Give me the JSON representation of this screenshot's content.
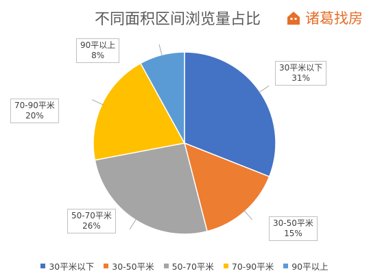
{
  "chart_data": {
    "type": "pie",
    "title": "不同面积区间浏览量占比",
    "categories": [
      "30平米以下",
      "30-50平米",
      "50-70平米",
      "70-90平米",
      "90平以上"
    ],
    "values": [
      31,
      15,
      26,
      20,
      8
    ],
    "value_labels": [
      "31%",
      "15%",
      "26%",
      "20%",
      "8%"
    ],
    "colors": [
      "#4472C4",
      "#ED7D31",
      "#A5A5A5",
      "#FFC000",
      "#5B9BD5"
    ],
    "legend_position": "bottom"
  },
  "logo": {
    "text": "诸葛找房",
    "color": "#E56E2A",
    "icon": "house-icon"
  }
}
